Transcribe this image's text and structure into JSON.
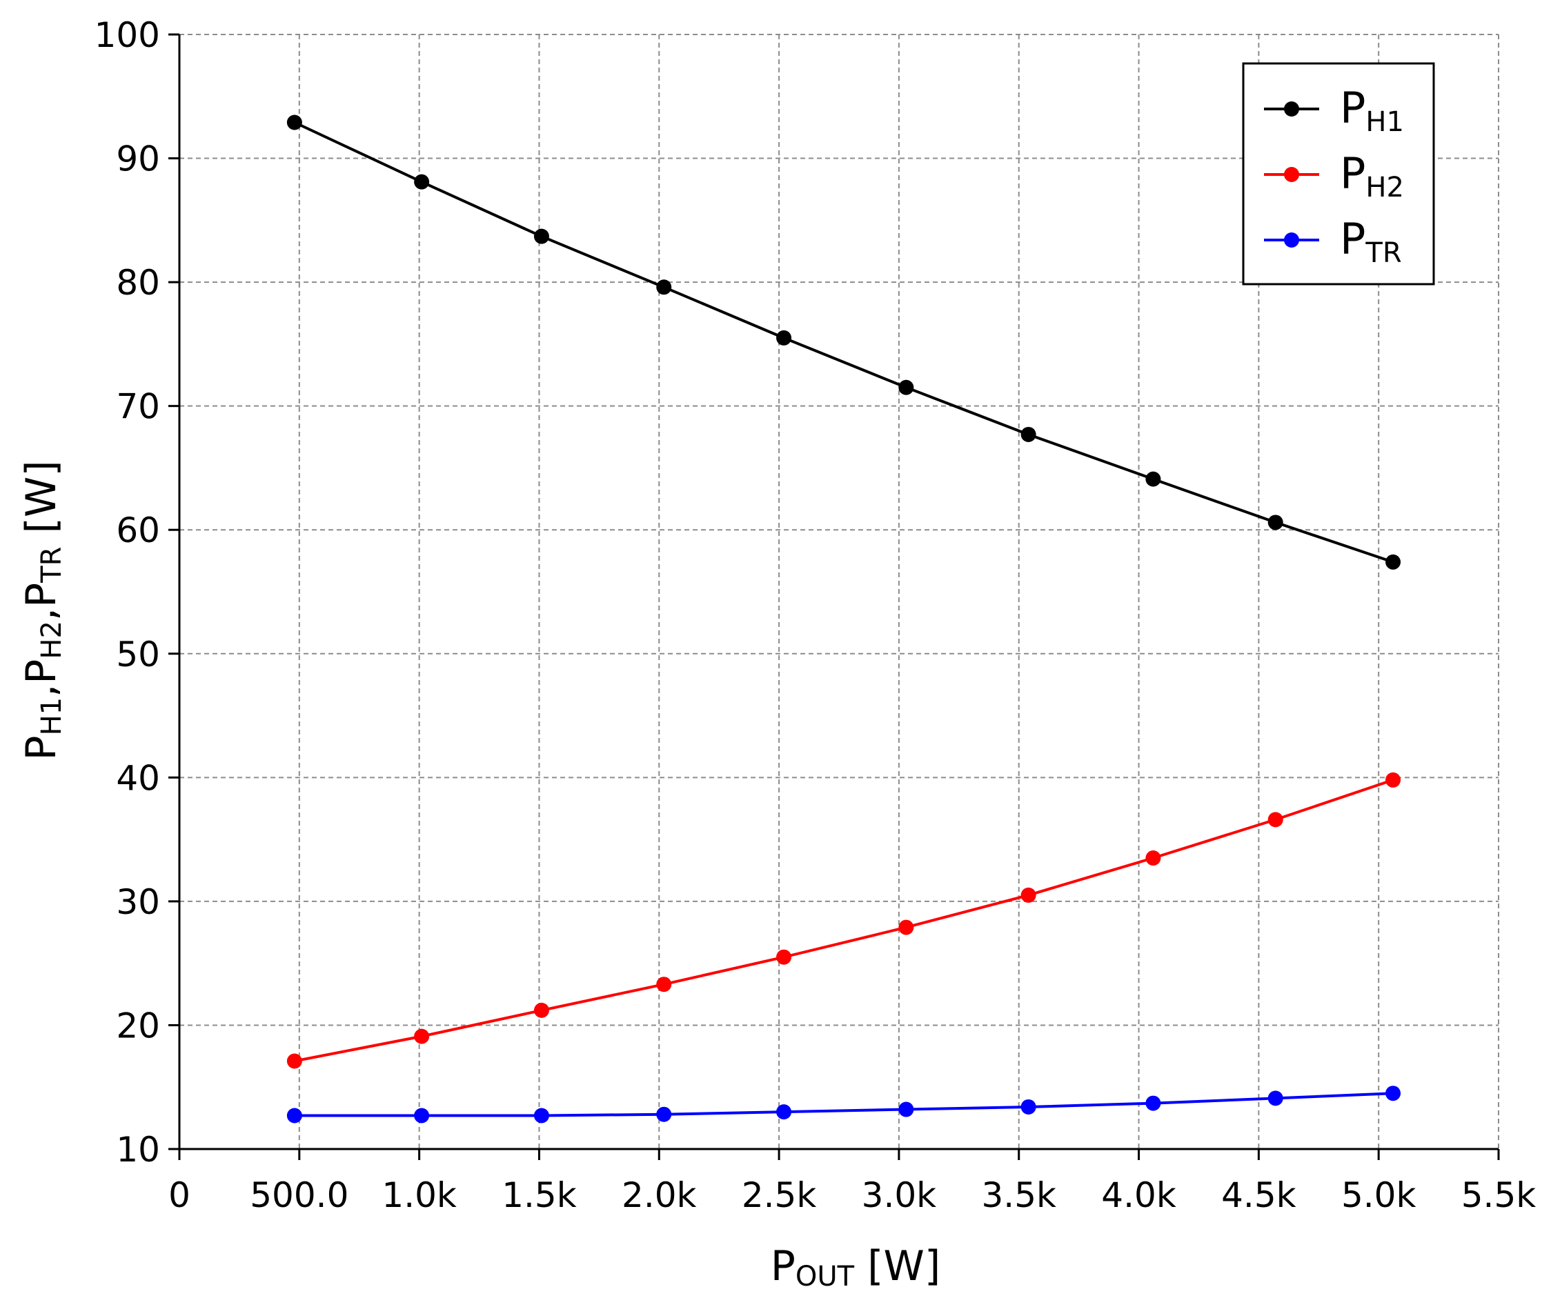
{
  "chart_data": {
    "type": "line",
    "title": "",
    "xlabel": {
      "main": "P",
      "sub": "OUT",
      "unit": " [W]"
    },
    "ylabel": {
      "parts": [
        {
          "main": "P",
          "sub": "H1"
        },
        {
          "main": ",P",
          "sub": "H2"
        },
        {
          "main": ",P",
          "sub": "TR"
        }
      ],
      "unit": " [W]"
    },
    "xlim": [
      0,
      5500
    ],
    "ylim": [
      10,
      100
    ],
    "grid": true,
    "legend_position": "top-right",
    "x_ticks": [
      {
        "value": 0,
        "label": "0"
      },
      {
        "value": 500,
        "label": "500.0"
      },
      {
        "value": 1000,
        "label": "1.0k"
      },
      {
        "value": 1500,
        "label": "1.5k"
      },
      {
        "value": 2000,
        "label": "2.0k"
      },
      {
        "value": 2500,
        "label": "2.5k"
      },
      {
        "value": 3000,
        "label": "3.0k"
      },
      {
        "value": 3500,
        "label": "3.5k"
      },
      {
        "value": 4000,
        "label": "4.0k"
      },
      {
        "value": 4500,
        "label": "4.5k"
      },
      {
        "value": 5000,
        "label": "5.0k"
      },
      {
        "value": 5500,
        "label": "5.5k"
      }
    ],
    "y_ticks": [
      {
        "value": 10,
        "label": "10"
      },
      {
        "value": 20,
        "label": "20"
      },
      {
        "value": 30,
        "label": "30"
      },
      {
        "value": 40,
        "label": "40"
      },
      {
        "value": 50,
        "label": "50"
      },
      {
        "value": 60,
        "label": "60"
      },
      {
        "value": 70,
        "label": "70"
      },
      {
        "value": 80,
        "label": "80"
      },
      {
        "value": 90,
        "label": "90"
      },
      {
        "value": 100,
        "label": "100"
      }
    ],
    "x": [
      480,
      1010,
      1510,
      2020,
      2520,
      3030,
      3540,
      4060,
      4570,
      5060
    ],
    "series": [
      {
        "name": "PH1",
        "label_main": "P",
        "label_sub": "H1",
        "color": "#000000",
        "values": [
          92.9,
          88.1,
          83.7,
          79.6,
          75.5,
          71.5,
          67.7,
          64.1,
          60.6,
          57.4
        ]
      },
      {
        "name": "PH2",
        "label_main": "P",
        "label_sub": "H2",
        "color": "#ff0000",
        "values": [
          17.1,
          19.1,
          21.2,
          23.3,
          25.5,
          27.9,
          30.5,
          33.5,
          36.6,
          39.8
        ]
      },
      {
        "name": "PTR",
        "label_main": "P",
        "label_sub": "TR",
        "color": "#0000ff",
        "values": [
          12.7,
          12.7,
          12.7,
          12.8,
          13.0,
          13.2,
          13.4,
          13.7,
          14.1,
          14.5
        ]
      }
    ]
  }
}
